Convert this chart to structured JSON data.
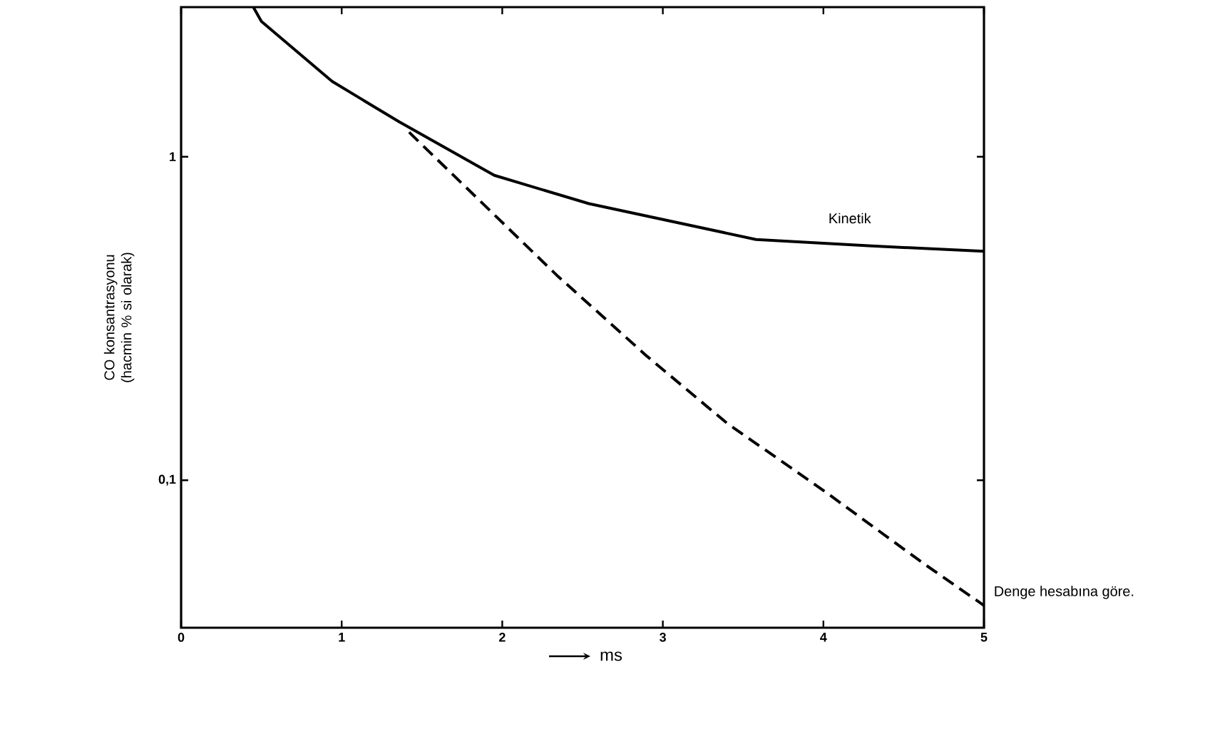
{
  "chart_data": {
    "type": "line",
    "xlabel": "ms",
    "ylabel": "CO konsantrasyonu (hacmin % si olarak)",
    "log": "y",
    "xlim": [
      0,
      5
    ],
    "xticks": [
      0,
      1,
      2,
      3,
      4,
      5
    ],
    "ylim": [
      0.035,
      2.9
    ],
    "yticks": [
      1,
      {
        "value": 0.1,
        "label": "0,1"
      }
    ],
    "grid": false,
    "marker": "none",
    "series": [
      {
        "name": "Kinetik",
        "color": "#000000",
        "line_style": "solid",
        "x": [
          0.45,
          0.5,
          0.94,
          1.36,
          1.95,
          2.54,
          3.58,
          4.3,
          5.0
        ],
        "values": [
          2.9,
          2.62,
          1.71,
          1.28,
          0.876,
          0.716,
          0.555,
          0.53,
          0.51
        ]
      },
      {
        "name": "Denge hesabına göre.",
        "color": "#000000",
        "line_style": "dashed",
        "x": [
          1.42,
          2.34,
          2.9,
          3.4,
          4.0,
          4.63,
          5.0
        ],
        "values": [
          1.19,
          0.43,
          0.242,
          0.15,
          0.093,
          0.055,
          0.041
        ]
      }
    ]
  }
}
